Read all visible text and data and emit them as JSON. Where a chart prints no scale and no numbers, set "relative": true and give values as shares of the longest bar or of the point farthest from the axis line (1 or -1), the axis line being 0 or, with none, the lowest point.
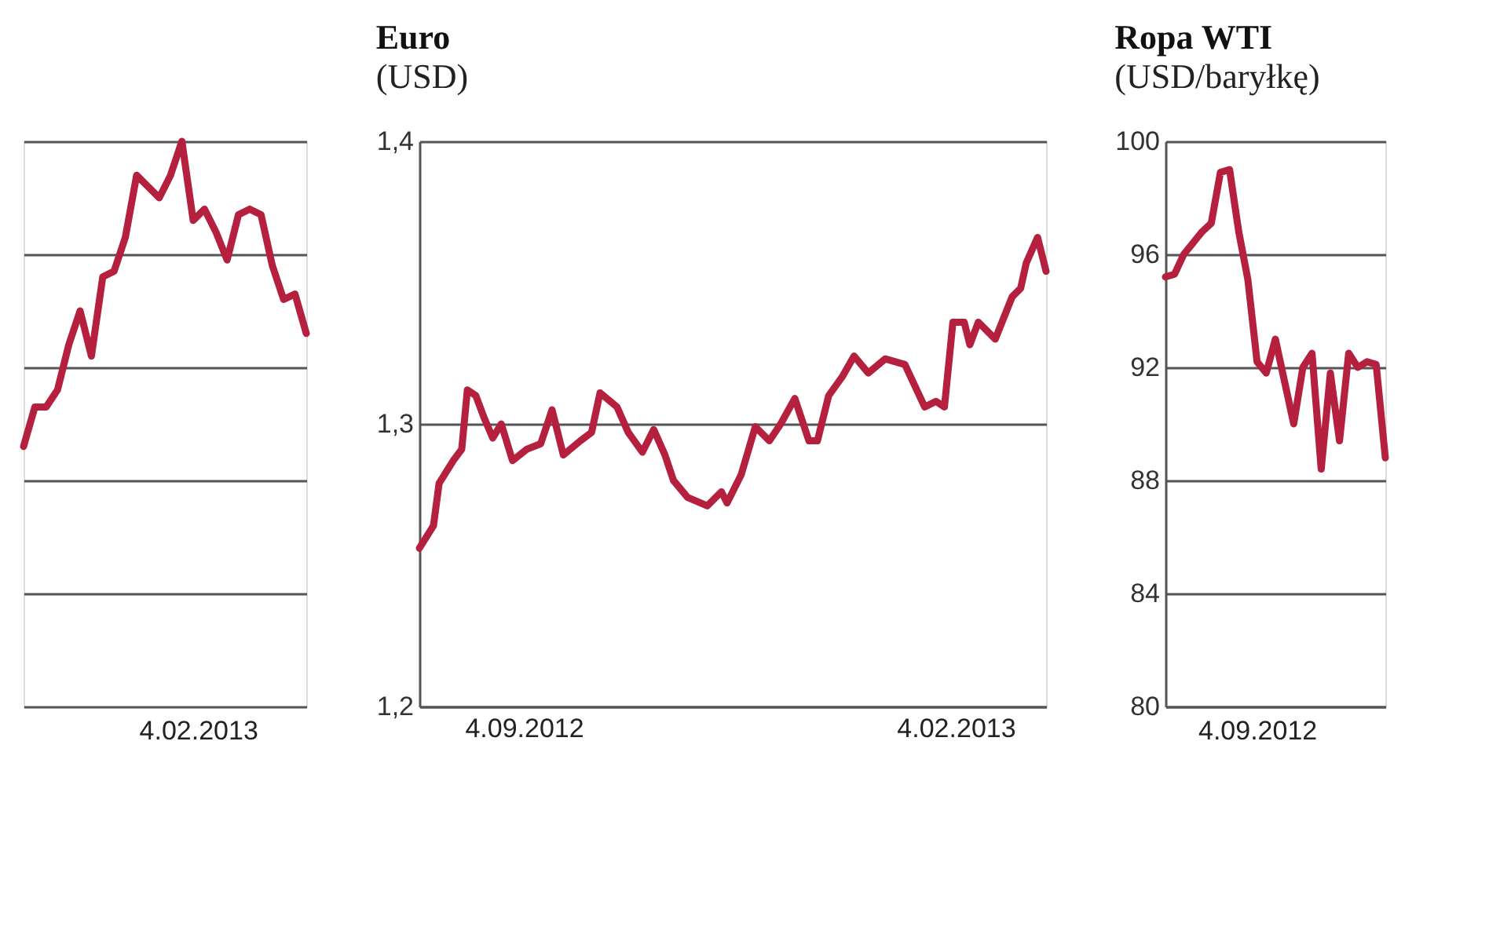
{
  "chart_data": [
    {
      "type": "line",
      "relative": true,
      "grid": "y",
      "tick_labels": false,
      "annotations": [
        "4.02.2013"
      ],
      "categories": [
        null,
        null,
        null,
        null,
        null,
        null,
        null,
        null,
        null,
        null,
        null,
        null,
        null,
        null,
        null,
        null,
        null,
        null,
        null,
        null,
        null,
        null,
        null,
        null,
        null,
        null
      ],
      "series": [
        {
          "color": "#b5203f",
          "values": [
            0.46,
            0.53,
            0.53,
            0.56,
            0.64,
            0.7,
            0.62,
            0.76,
            0.77,
            0.83,
            0.94,
            0.92,
            0.9,
            0.94,
            1.0,
            0.86,
            0.88,
            0.84,
            0.79,
            0.87,
            0.88,
            0.87,
            0.78,
            0.72,
            0.73,
            0.66
          ]
        }
      ]
    },
    {
      "type": "line",
      "title": "Euro",
      "subtitle": "(USD)",
      "grid": "y",
      "ylim": [
        1.2,
        1.4
      ],
      "yticks": [
        {
          "value": 1.2,
          "label": "1,2"
        },
        {
          "value": 1.3,
          "label": "1,3"
        },
        {
          "value": 1.4,
          "label": "1,4"
        }
      ],
      "xlim": [
        "2012-07-29",
        "2013-03-08"
      ],
      "xticks": [
        {
          "value": "2012-09-04",
          "label": "4.09.2012"
        },
        {
          "value": "2013-02-04",
          "label": "4.02.2013"
        }
      ],
      "x": [
        "2012-07-29",
        "2012-08-03",
        "2012-08-05",
        "2012-08-10",
        "2012-08-13",
        "2012-08-15",
        "2012-08-18",
        "2012-08-21",
        "2012-08-24",
        "2012-08-27",
        "2012-08-31",
        "2012-09-05",
        "2012-09-10",
        "2012-09-14",
        "2012-09-18",
        "2012-09-24",
        "2012-09-28",
        "2012-10-01",
        "2012-10-07",
        "2012-10-11",
        "2012-10-16",
        "2012-10-20",
        "2012-10-24",
        "2012-10-27",
        "2012-11-01",
        "2012-11-08",
        "2012-11-13",
        "2012-11-15",
        "2012-11-20",
        "2012-11-25",
        "2012-11-30",
        "2012-12-04",
        "2012-12-09",
        "2012-12-14",
        "2012-12-17",
        "2012-12-21",
        "2012-12-26",
        "2012-12-30",
        "2013-01-04",
        "2013-01-10",
        "2013-01-17",
        "2013-01-24",
        "2013-01-28",
        "2013-01-31",
        "2013-02-03",
        "2013-02-07",
        "2013-02-09",
        "2013-02-12",
        "2013-02-18",
        "2013-02-24",
        "2013-02-27",
        "2013-03-01",
        "2013-03-05",
        "2013-03-08"
      ],
      "series": [
        {
          "color": "#b5203f",
          "values": [
            1.256,
            1.264,
            1.279,
            1.287,
            1.291,
            1.312,
            1.31,
            1.302,
            1.295,
            1.3,
            1.287,
            1.291,
            1.293,
            1.305,
            1.289,
            1.294,
            1.297,
            1.311,
            1.306,
            1.297,
            1.29,
            1.298,
            1.289,
            1.28,
            1.274,
            1.271,
            1.276,
            1.272,
            1.282,
            1.299,
            1.294,
            1.3,
            1.309,
            1.294,
            1.294,
            1.31,
            1.317,
            1.324,
            1.318,
            1.323,
            1.321,
            1.306,
            1.308,
            1.306,
            1.336,
            1.336,
            1.328,
            1.336,
            1.33,
            1.345,
            1.348,
            1.357,
            1.366,
            1.354
          ]
        }
      ]
    },
    {
      "type": "line",
      "title": "Ropa WTI",
      "subtitle": "(USD/baryłkę)",
      "grid": "y",
      "tick_labels": "y",
      "ylim": [
        80,
        100
      ],
      "yticks": [
        80,
        84,
        88,
        92,
        96,
        100
      ],
      "annotations": [
        "4.09.2012"
      ],
      "categories": [
        null,
        null,
        null,
        null,
        null,
        null,
        null,
        null,
        null,
        null,
        null,
        null,
        null,
        null,
        null,
        null,
        null,
        null,
        null,
        null,
        null,
        null,
        null,
        null,
        null
      ],
      "series": [
        {
          "color": "#b5203f",
          "values": [
            95.2,
            95.3,
            96.0,
            96.4,
            96.8,
            97.1,
            98.9,
            99.0,
            96.8,
            95.1,
            92.2,
            91.8,
            93.0,
            91.5,
            90.0,
            92.0,
            92.5,
            88.4,
            91.8,
            89.4,
            92.5,
            92.0,
            92.2,
            92.1,
            88.8
          ]
        }
      ]
    }
  ]
}
